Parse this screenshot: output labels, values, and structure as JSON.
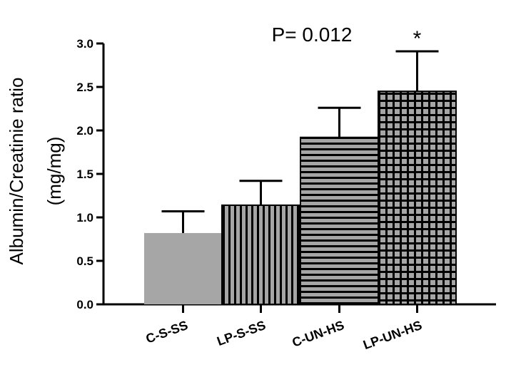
{
  "chart_data": {
    "type": "bar",
    "categories": [
      "C-S-SS",
      "LP-S-SS",
      "C-UN-HS",
      "LP-UN-HS"
    ],
    "values": [
      0.82,
      1.14,
      1.92,
      2.45
    ],
    "errors": [
      0.25,
      0.28,
      0.34,
      0.46
    ],
    "fills": [
      "solid",
      "vertical-stripes",
      "horizontal-stripes",
      "grid"
    ],
    "significance": [
      "",
      "",
      "",
      "*"
    ],
    "annotation": "P= 0.012",
    "ylabel_line1": "Albumin/Creatinie ratio",
    "ylabel_line2": "(mg/mg)",
    "ylim": [
      0,
      3.0
    ],
    "yticks": [
      "0.0",
      "0.5",
      "1.0",
      "1.5",
      "2.0",
      "2.5",
      "3.0"
    ],
    "grid": false,
    "colors": {
      "bar": "#a6a6a6",
      "stripe": "#000000",
      "axis": "#000000"
    }
  }
}
